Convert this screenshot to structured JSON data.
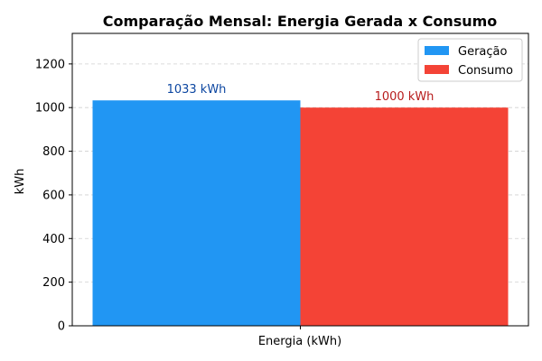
{
  "chart_data": {
    "type": "bar",
    "title": "Comparação Mensal: Energia Gerada x Consumo",
    "xlabel": "Energia (kWh)",
    "ylabel": "kWh",
    "categories": [
      "Energia (kWh)"
    ],
    "ylim": [
      0,
      1340
    ],
    "yticks": [
      0,
      200,
      400,
      600,
      800,
      1000,
      1200
    ],
    "grid": true,
    "legend_position": "top-right",
    "series": [
      {
        "name": "Geração",
        "values": [
          1033
        ],
        "color": "#2196F3",
        "label": "1033 kWh",
        "label_color": "#0D47A1"
      },
      {
        "name": "Consumo",
        "values": [
          1000
        ],
        "color": "#F44336",
        "label": "1000 kWh",
        "label_color": "#B71C1C"
      }
    ]
  }
}
